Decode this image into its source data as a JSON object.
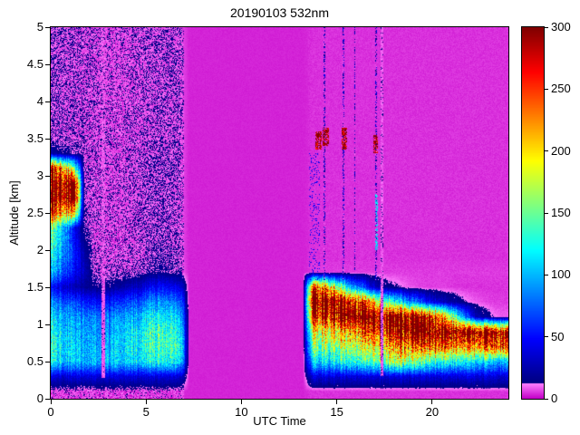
{
  "chart_data": {
    "type": "heatmap",
    "title": "20190103 532nm",
    "xlabel": "UTC Time",
    "ylabel": "Altitude [km]",
    "xlim": [
      0,
      24
    ],
    "ylim": [
      0,
      5
    ],
    "xticks": [
      0,
      5,
      10,
      15,
      20
    ],
    "yticks": [
      0,
      0.5,
      1,
      1.5,
      2,
      2.5,
      3,
      3.5,
      4,
      4.5,
      5
    ],
    "colorbar": {
      "min": 0,
      "max": 300,
      "ticks": [
        0,
        50,
        100,
        150,
        200,
        250,
        300
      ]
    },
    "colormap": {
      "name": "jet-with-magenta-low",
      "magenta_max": 12,
      "magenta_low": "#c300c8",
      "magenta_high": "#ff82ff"
    },
    "grid": {
      "t0": 0,
      "dt": 0.5,
      "alt0": 0,
      "dalt": 0.2,
      "order": "bottom-up",
      "values": [
        [
          4,
          4,
          4,
          4,
          4,
          4,
          4,
          4,
          4,
          4,
          4,
          4,
          4,
          4,
          3,
          3,
          3,
          3,
          3,
          3,
          3,
          3,
          3,
          3,
          3,
          3,
          3,
          4,
          4,
          4,
          4,
          4,
          4,
          4,
          4,
          4,
          4,
          4,
          4,
          4,
          4,
          4,
          4,
          4,
          4,
          4,
          4,
          4
        ],
        [
          38,
          38,
          38,
          38,
          38,
          38,
          38,
          38,
          38,
          38,
          38,
          38,
          38,
          38,
          3,
          3,
          3,
          3,
          3,
          3,
          3,
          3,
          3,
          3,
          3,
          3,
          3,
          38,
          38,
          38,
          38,
          38,
          38,
          38,
          38,
          38,
          38,
          38,
          38,
          38,
          38,
          38,
          38,
          38,
          38,
          38,
          38,
          38
        ],
        [
          120,
          110,
          105,
          100,
          100,
          100,
          105,
          105,
          110,
          115,
          120,
          125,
          125,
          120,
          3,
          3,
          3,
          3,
          3,
          3,
          3,
          3,
          3,
          3,
          3,
          3,
          3,
          110,
          115,
          120,
          125,
          130,
          135,
          140,
          150,
          160,
          170,
          160,
          150,
          140,
          135,
          130,
          125,
          120,
          115,
          110,
          108,
          105
        ],
        [
          130,
          115,
          105,
          100,
          95,
          95,
          100,
          105,
          115,
          125,
          135,
          140,
          140,
          135,
          3,
          3,
          3,
          3,
          3,
          3,
          3,
          3,
          3,
          3,
          3,
          3,
          3,
          150,
          155,
          160,
          165,
          170,
          180,
          190,
          200,
          210,
          220,
          230,
          240,
          245,
          250,
          240,
          230,
          220,
          230,
          240,
          250,
          255
        ],
        [
          120,
          110,
          100,
          95,
          90,
          90,
          95,
          100,
          110,
          120,
          130,
          135,
          130,
          125,
          3,
          3,
          3,
          3,
          3,
          3,
          3,
          3,
          3,
          3,
          3,
          3,
          3,
          185,
          190,
          200,
          210,
          220,
          235,
          250,
          260,
          270,
          280,
          295,
          300,
          300,
          300,
          300,
          300,
          300,
          300,
          300,
          295,
          290
        ],
        [
          110,
          100,
          90,
          85,
          80,
          80,
          85,
          90,
          95,
          105,
          115,
          120,
          115,
          110,
          3,
          3,
          3,
          3,
          3,
          3,
          3,
          3,
          3,
          3,
          3,
          3,
          3,
          260,
          270,
          280,
          295,
          300,
          300,
          300,
          300,
          300,
          300,
          300,
          290,
          280,
          260,
          200,
          150,
          80,
          30,
          20,
          10,
          8
        ],
        [
          85,
          75,
          65,
          55,
          50,
          50,
          55,
          60,
          65,
          75,
          85,
          90,
          85,
          80,
          3,
          3,
          3,
          3,
          3,
          3,
          3,
          3,
          3,
          3,
          3,
          3,
          3,
          300,
          300,
          300,
          290,
          270,
          260,
          220,
          180,
          140,
          120,
          90,
          80,
          50,
          40,
          25,
          20,
          12,
          8,
          6,
          5,
          5
        ],
        [
          45,
          35,
          25,
          20,
          15,
          15,
          18,
          22,
          28,
          35,
          45,
          50,
          45,
          40,
          3,
          3,
          3,
          3,
          3,
          3,
          3,
          3,
          3,
          3,
          3,
          3,
          3,
          250,
          230,
          200,
          150,
          100,
          80,
          40,
          25,
          15,
          12,
          8,
          6,
          5,
          5,
          5,
          4,
          4,
          4,
          4,
          4,
          4
        ],
        [
          95,
          70,
          45,
          30,
          10,
          8,
          8,
          8,
          8,
          10,
          12,
          15,
          12,
          10,
          3,
          3,
          3,
          3,
          3,
          3,
          3,
          3,
          3,
          3,
          3,
          3,
          3,
          5,
          5,
          5,
          5,
          5,
          5,
          5,
          5,
          5,
          5,
          5,
          5,
          5,
          5,
          5,
          5,
          5,
          5,
          5,
          5,
          5
        ],
        [
          110,
          85,
          55,
          25,
          8,
          7,
          7,
          7,
          7,
          8,
          10,
          12,
          10,
          8,
          3,
          3,
          3,
          3,
          3,
          3,
          3,
          3,
          3,
          3,
          3,
          3,
          3,
          4,
          4,
          4,
          4,
          4,
          4,
          4,
          4,
          4,
          4,
          4,
          4,
          4,
          4,
          4,
          4,
          4,
          4,
          4,
          4,
          4
        ],
        [
          130,
          95,
          50,
          18,
          7,
          6,
          6,
          6,
          7,
          8,
          9,
          10,
          9,
          8,
          3,
          3,
          3,
          3,
          3,
          3,
          3,
          3,
          3,
          3,
          3,
          3,
          3,
          4,
          4,
          4,
          4,
          4,
          4,
          4,
          4,
          4,
          4,
          4,
          4,
          4,
          4,
          4,
          4,
          4,
          4,
          4,
          4,
          4
        ],
        [
          140,
          100,
          40,
          12,
          7,
          6,
          6,
          6,
          7,
          8,
          9,
          10,
          9,
          8,
          3,
          3,
          3,
          3,
          3,
          3,
          3,
          3,
          3,
          3,
          3,
          3,
          3,
          4,
          4,
          4,
          4,
          4,
          4,
          4,
          4,
          4,
          4,
          4,
          4,
          4,
          4,
          4,
          4,
          4,
          4,
          4,
          4,
          4
        ],
        [
          250,
          230,
          200,
          10,
          7,
          6,
          6,
          6,
          7,
          8,
          9,
          9,
          9,
          8,
          3,
          3,
          3,
          3,
          3,
          3,
          3,
          3,
          3,
          3,
          3,
          3,
          3,
          4,
          4,
          4,
          4,
          4,
          4,
          4,
          4,
          4,
          4,
          4,
          4,
          4,
          4,
          4,
          4,
          4,
          4,
          4,
          4,
          4
        ],
        [
          300,
          300,
          300,
          8,
          7,
          6,
          6,
          6,
          7,
          8,
          9,
          9,
          9,
          8,
          3,
          3,
          3,
          3,
          3,
          3,
          3,
          3,
          3,
          3,
          3,
          3,
          3,
          4,
          4,
          4,
          4,
          4,
          4,
          4,
          4,
          4,
          4,
          4,
          4,
          4,
          4,
          4,
          4,
          4,
          4,
          4,
          4,
          4
        ],
        [
          300,
          300,
          300,
          8,
          7,
          6,
          6,
          6,
          7,
          8,
          9,
          9,
          9,
          8,
          3,
          3,
          3,
          3,
          3,
          3,
          3,
          3,
          3,
          3,
          3,
          3,
          3,
          4,
          4,
          4,
          4,
          4,
          4,
          4,
          4,
          4,
          4,
          4,
          4,
          4,
          4,
          4,
          4,
          4,
          4,
          4,
          4,
          4
        ],
        [
          260,
          220,
          150,
          8,
          7,
          6,
          6,
          6,
          7,
          8,
          9,
          9,
          9,
          8,
          3,
          3,
          3,
          3,
          3,
          3,
          3,
          3,
          3,
          3,
          3,
          3,
          3,
          4,
          4,
          4,
          4,
          4,
          4,
          4,
          4,
          4,
          4,
          4,
          4,
          4,
          4,
          4,
          4,
          4,
          4,
          4,
          4,
          4
        ],
        [
          20,
          15,
          10,
          8,
          7,
          6,
          6,
          6,
          7,
          8,
          9,
          9,
          9,
          8,
          3,
          3,
          3,
          3,
          3,
          3,
          3,
          3,
          3,
          3,
          3,
          3,
          3,
          4,
          4,
          4,
          4,
          4,
          4,
          4,
          4,
          4,
          4,
          4,
          4,
          4,
          4,
          4,
          4,
          4,
          4,
          4,
          4,
          4
        ],
        [
          9,
          8,
          8,
          7,
          7,
          6,
          6,
          6,
          7,
          7,
          8,
          8,
          8,
          8,
          3,
          3,
          3,
          3,
          3,
          3,
          3,
          3,
          3,
          3,
          3,
          3,
          3,
          4,
          4,
          4,
          4,
          4,
          4,
          4,
          4,
          4,
          4,
          4,
          4,
          4,
          4,
          4,
          4,
          4,
          4,
          4,
          4,
          4
        ],
        [
          9,
          8,
          8,
          7,
          7,
          6,
          6,
          6,
          7,
          7,
          8,
          8,
          8,
          8,
          3,
          3,
          3,
          3,
          3,
          3,
          3,
          3,
          3,
          3,
          3,
          3,
          3,
          4,
          4,
          4,
          4,
          4,
          4,
          4,
          4,
          4,
          4,
          4,
          4,
          4,
          4,
          4,
          4,
          4,
          4,
          4,
          4,
          4
        ],
        [
          9,
          8,
          8,
          7,
          7,
          6,
          6,
          6,
          7,
          7,
          8,
          8,
          8,
          8,
          3,
          3,
          3,
          3,
          3,
          3,
          3,
          3,
          3,
          3,
          3,
          3,
          3,
          4,
          4,
          4,
          4,
          4,
          4,
          4,
          4,
          4,
          4,
          4,
          4,
          4,
          4,
          4,
          4,
          4,
          4,
          4,
          4,
          4
        ],
        [
          9,
          8,
          8,
          7,
          7,
          6,
          6,
          6,
          7,
          7,
          8,
          8,
          8,
          8,
          3,
          3,
          3,
          3,
          3,
          3,
          3,
          3,
          3,
          3,
          3,
          3,
          3,
          4,
          4,
          4,
          4,
          4,
          4,
          4,
          4,
          4,
          4,
          4,
          4,
          4,
          4,
          4,
          4,
          4,
          4,
          4,
          4,
          4
        ],
        [
          9,
          8,
          8,
          7,
          7,
          6,
          6,
          6,
          7,
          7,
          8,
          8,
          8,
          8,
          3,
          3,
          3,
          3,
          3,
          3,
          3,
          3,
          3,
          3,
          3,
          3,
          3,
          4,
          4,
          4,
          4,
          4,
          4,
          4,
          4,
          4,
          4,
          4,
          4,
          4,
          4,
          4,
          4,
          4,
          4,
          4,
          4,
          4
        ],
        [
          9,
          8,
          8,
          7,
          7,
          6,
          6,
          6,
          7,
          7,
          8,
          8,
          8,
          8,
          3,
          3,
          3,
          3,
          3,
          3,
          3,
          3,
          3,
          3,
          3,
          3,
          3,
          4,
          4,
          4,
          4,
          4,
          4,
          4,
          4,
          4,
          4,
          4,
          4,
          4,
          4,
          4,
          4,
          4,
          4,
          4,
          4,
          4
        ],
        [
          9,
          8,
          8,
          7,
          7,
          6,
          6,
          6,
          7,
          7,
          8,
          8,
          8,
          8,
          3,
          3,
          3,
          3,
          3,
          3,
          3,
          3,
          3,
          3,
          3,
          3,
          3,
          4,
          4,
          4,
          4,
          4,
          4,
          4,
          4,
          4,
          4,
          4,
          4,
          4,
          4,
          4,
          4,
          4,
          4,
          4,
          4,
          4
        ],
        [
          9,
          8,
          8,
          7,
          7,
          6,
          6,
          6,
          7,
          7,
          8,
          8,
          8,
          8,
          3,
          3,
          3,
          3,
          3,
          3,
          3,
          3,
          3,
          3,
          3,
          3,
          3,
          4,
          4,
          4,
          4,
          4,
          4,
          4,
          4,
          4,
          4,
          4,
          4,
          4,
          4,
          4,
          4,
          4,
          4,
          4,
          4,
          4
        ]
      ]
    },
    "noise_regions": [
      {
        "t": [
          0,
          7
        ],
        "amp": 14
      },
      {
        "t": [
          7,
          13.5
        ],
        "amp": 1.5
      },
      {
        "t": [
          13.5,
          24
        ],
        "amp": 3
      }
    ],
    "stripes": [
      {
        "type": "gap",
        "t": 2.75,
        "width": 0.18,
        "alt": [
          0.28,
          5
        ]
      },
      {
        "type": "gap",
        "t": 17.35,
        "width": 0.14,
        "alt": [
          0.3,
          5
        ]
      },
      {
        "type": "noise",
        "t": 14.35,
        "width": 0.12,
        "alt": [
          1.6,
          5
        ]
      },
      {
        "type": "noise",
        "t": 15.35,
        "width": 0.1,
        "alt": [
          1.6,
          5
        ]
      },
      {
        "type": "noise",
        "t": 15.95,
        "width": 0.08,
        "alt": [
          1.6,
          5
        ]
      },
      {
        "type": "noise",
        "t": 17.05,
        "width": 0.1,
        "alt": [
          1.6,
          5
        ]
      }
    ],
    "specks": [
      {
        "t": [
          13.9,
          14.2
        ],
        "alt": [
          3.35,
          3.6
        ],
        "value": 295,
        "density": 0.7
      },
      {
        "t": [
          14.25,
          14.6
        ],
        "alt": [
          3.4,
          3.65
        ],
        "value": 295,
        "density": 0.7
      },
      {
        "t": [
          15.25,
          15.55
        ],
        "alt": [
          3.35,
          3.65
        ],
        "value": 295,
        "density": 0.7
      },
      {
        "t": [
          16.9,
          17.15
        ],
        "alt": [
          3.3,
          3.55
        ],
        "value": 290,
        "density": 0.7
      },
      {
        "t": [
          17.0,
          17.15
        ],
        "alt": [
          2.0,
          2.75
        ],
        "value": 110,
        "density": 0.5
      },
      {
        "t": [
          13.55,
          14.1
        ],
        "alt": [
          1.6,
          3.3
        ],
        "value": 45,
        "density": 0.12
      }
    ]
  }
}
